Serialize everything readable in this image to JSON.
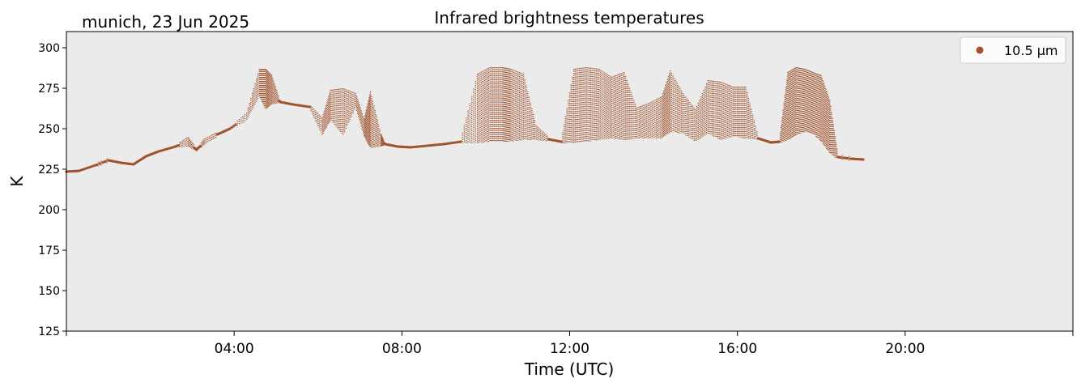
{
  "colors": {
    "series": "#a0522d",
    "plot_background": "#ebebeb",
    "axes": "#000000"
  },
  "chart_data": {
    "type": "scatter",
    "location_date": "munich, 23 Jun 2025",
    "title": "Infrared brightness temperatures",
    "xlabel": "Time (UTC)",
    "ylabel": "K",
    "xlim_hours": [
      0,
      24
    ],
    "ylim": [
      125,
      310
    ],
    "x_ticks": [
      {
        "hour": 0,
        "label": ""
      },
      {
        "hour": 4,
        "label": "04:00"
      },
      {
        "hour": 8,
        "label": "08:00"
      },
      {
        "hour": 12,
        "label": "12:00"
      },
      {
        "hour": 16,
        "label": "16:00"
      },
      {
        "hour": 20,
        "label": "20:00"
      },
      {
        "hour": 24,
        "label": ""
      }
    ],
    "y_ticks": [
      125,
      150,
      175,
      200,
      225,
      250,
      275,
      300
    ],
    "grid": false,
    "legend_position": "top-right",
    "series": [
      {
        "name": "10.5 µm",
        "x_hours": [
          0.0,
          0.3,
          0.7,
          1.0,
          1.3,
          1.6,
          1.9,
          2.2,
          2.6,
          2.9,
          3.1,
          3.3,
          3.6,
          3.9,
          4.3,
          4.6,
          4.75,
          4.9,
          5.1,
          5.4,
          5.8,
          6.1,
          6.3,
          6.6,
          6.9,
          7.1,
          7.25,
          7.5,
          7.6,
          7.9,
          8.2,
          8.6,
          9.0,
          9.4,
          9.8,
          10.1,
          10.4,
          10.6,
          10.9,
          11.2,
          11.5,
          11.8,
          12.1,
          12.4,
          12.7,
          13.0,
          13.3,
          13.6,
          13.9,
          14.2,
          14.4,
          14.7,
          15.0,
          15.3,
          15.6,
          15.9,
          16.2,
          16.5,
          16.8,
          17.0,
          17.2,
          17.4,
          17.6,
          17.8,
          18.0,
          18.2,
          18.4,
          18.7,
          19.0
        ],
        "min_K": [
          223,
          223,
          226,
          229,
          228,
          227,
          232,
          235,
          238,
          239,
          236,
          240,
          245,
          249,
          255,
          270,
          262,
          265,
          266,
          264,
          262,
          246,
          255,
          246,
          263,
          245,
          238,
          239,
          240,
          238,
          238,
          239,
          240,
          241,
          241,
          242,
          242,
          242,
          243,
          243,
          242,
          241,
          241,
          242,
          243,
          244,
          243,
          244,
          244,
          244,
          248,
          247,
          242,
          247,
          243,
          245,
          244,
          243,
          241,
          241,
          243,
          246,
          248,
          247,
          242,
          235,
          231,
          230,
          230
        ],
        "max_K": [
          224,
          225,
          229,
          232,
          230,
          229,
          234,
          237,
          240,
          245,
          238,
          244,
          248,
          251,
          260,
          287,
          287,
          283,
          267,
          266,
          265,
          257,
          274,
          275,
          272,
          256,
          273,
          247,
          241,
          240,
          239,
          240,
          241,
          243,
          284,
          288,
          288,
          287,
          284,
          252,
          245,
          243,
          287,
          288,
          287,
          282,
          285,
          263,
          266,
          270,
          286,
          272,
          262,
          280,
          279,
          276,
          276,
          245,
          242,
          243,
          285,
          288,
          287,
          285,
          283,
          268,
          234,
          233,
          232
        ]
      }
    ]
  }
}
